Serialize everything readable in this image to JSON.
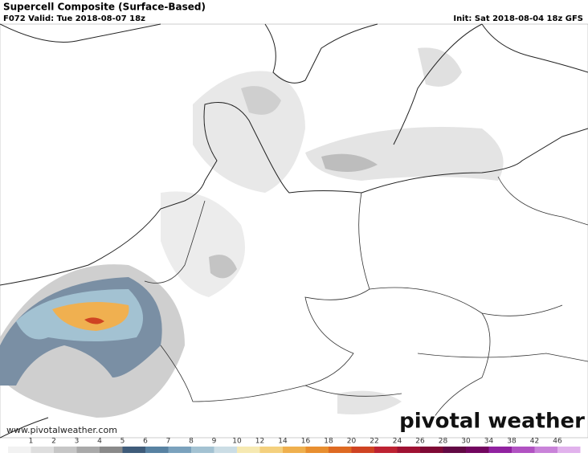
{
  "header": {
    "title": "Supercell Composite (Surface-Based)",
    "valid": "F072 Valid: Tue 2018-08-07 18z",
    "init": "Init: Sat 2018-08-04 18z GFS"
  },
  "footer": {
    "website": "www.pivotalweather.com",
    "logo": "pivotal weather"
  },
  "colorbar": {
    "labels": [
      1,
      2,
      3,
      4,
      5,
      6,
      7,
      8,
      9,
      10,
      12,
      14,
      16,
      18,
      20,
      22,
      24,
      26,
      28,
      30,
      34,
      38,
      42,
      46
    ],
    "colors": [
      "#f2f2f2",
      "#dedede",
      "#c6c6c6",
      "#a9a9a9",
      "#8a8a8a",
      "#3f5c7a",
      "#5882a2",
      "#7ba2bd",
      "#a3c2d2",
      "#cbdde5",
      "#f6e9b2",
      "#f4d07e",
      "#efb04e",
      "#e88f30",
      "#de6a22",
      "#cf4322",
      "#bd2232",
      "#9f1233",
      "#7f0a35",
      "#620944",
      "#72065f",
      "#9122a0",
      "#b152c2",
      "#c983d9",
      "#e1b2ec"
    ]
  }
}
